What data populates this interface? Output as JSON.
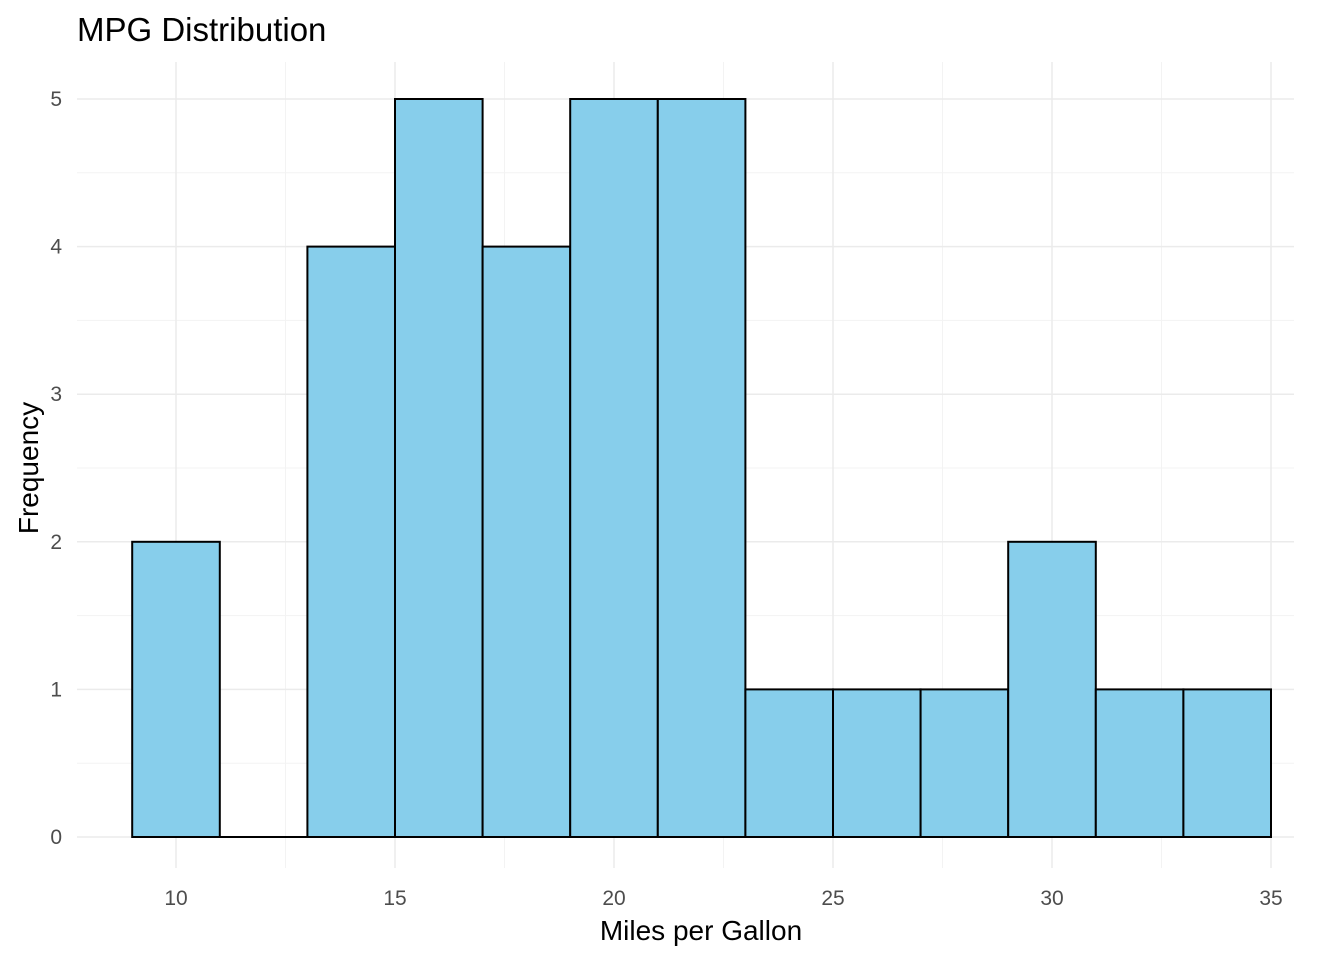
{
  "chart_data": {
    "type": "bar",
    "title": "MPG Distribution",
    "xlabel": "Miles per Gallon",
    "ylabel": "Frequency",
    "bin_width": 2,
    "bins": [
      {
        "start": 9,
        "end": 11,
        "count": 2
      },
      {
        "start": 11,
        "end": 13,
        "count": 0
      },
      {
        "start": 13,
        "end": 15,
        "count": 4
      },
      {
        "start": 15,
        "end": 17,
        "count": 5
      },
      {
        "start": 17,
        "end": 19,
        "count": 4
      },
      {
        "start": 19,
        "end": 21,
        "count": 5
      },
      {
        "start": 21,
        "end": 23,
        "count": 5
      },
      {
        "start": 23,
        "end": 25,
        "count": 1
      },
      {
        "start": 25,
        "end": 27,
        "count": 1
      },
      {
        "start": 27,
        "end": 29,
        "count": 1
      },
      {
        "start": 29,
        "end": 31,
        "count": 2
      },
      {
        "start": 31,
        "end": 33,
        "count": 1
      },
      {
        "start": 33,
        "end": 35,
        "count": 1
      }
    ],
    "xlim": [
      8,
      36
    ],
    "ylim": [
      0,
      5
    ],
    "x_ticks": [
      10,
      15,
      20,
      25,
      30,
      35
    ],
    "y_ticks": [
      0,
      1,
      2,
      3,
      4,
      5
    ],
    "fill_color": "#87CEEB",
    "border_color": "#000000",
    "grid": true,
    "legend": "none"
  }
}
